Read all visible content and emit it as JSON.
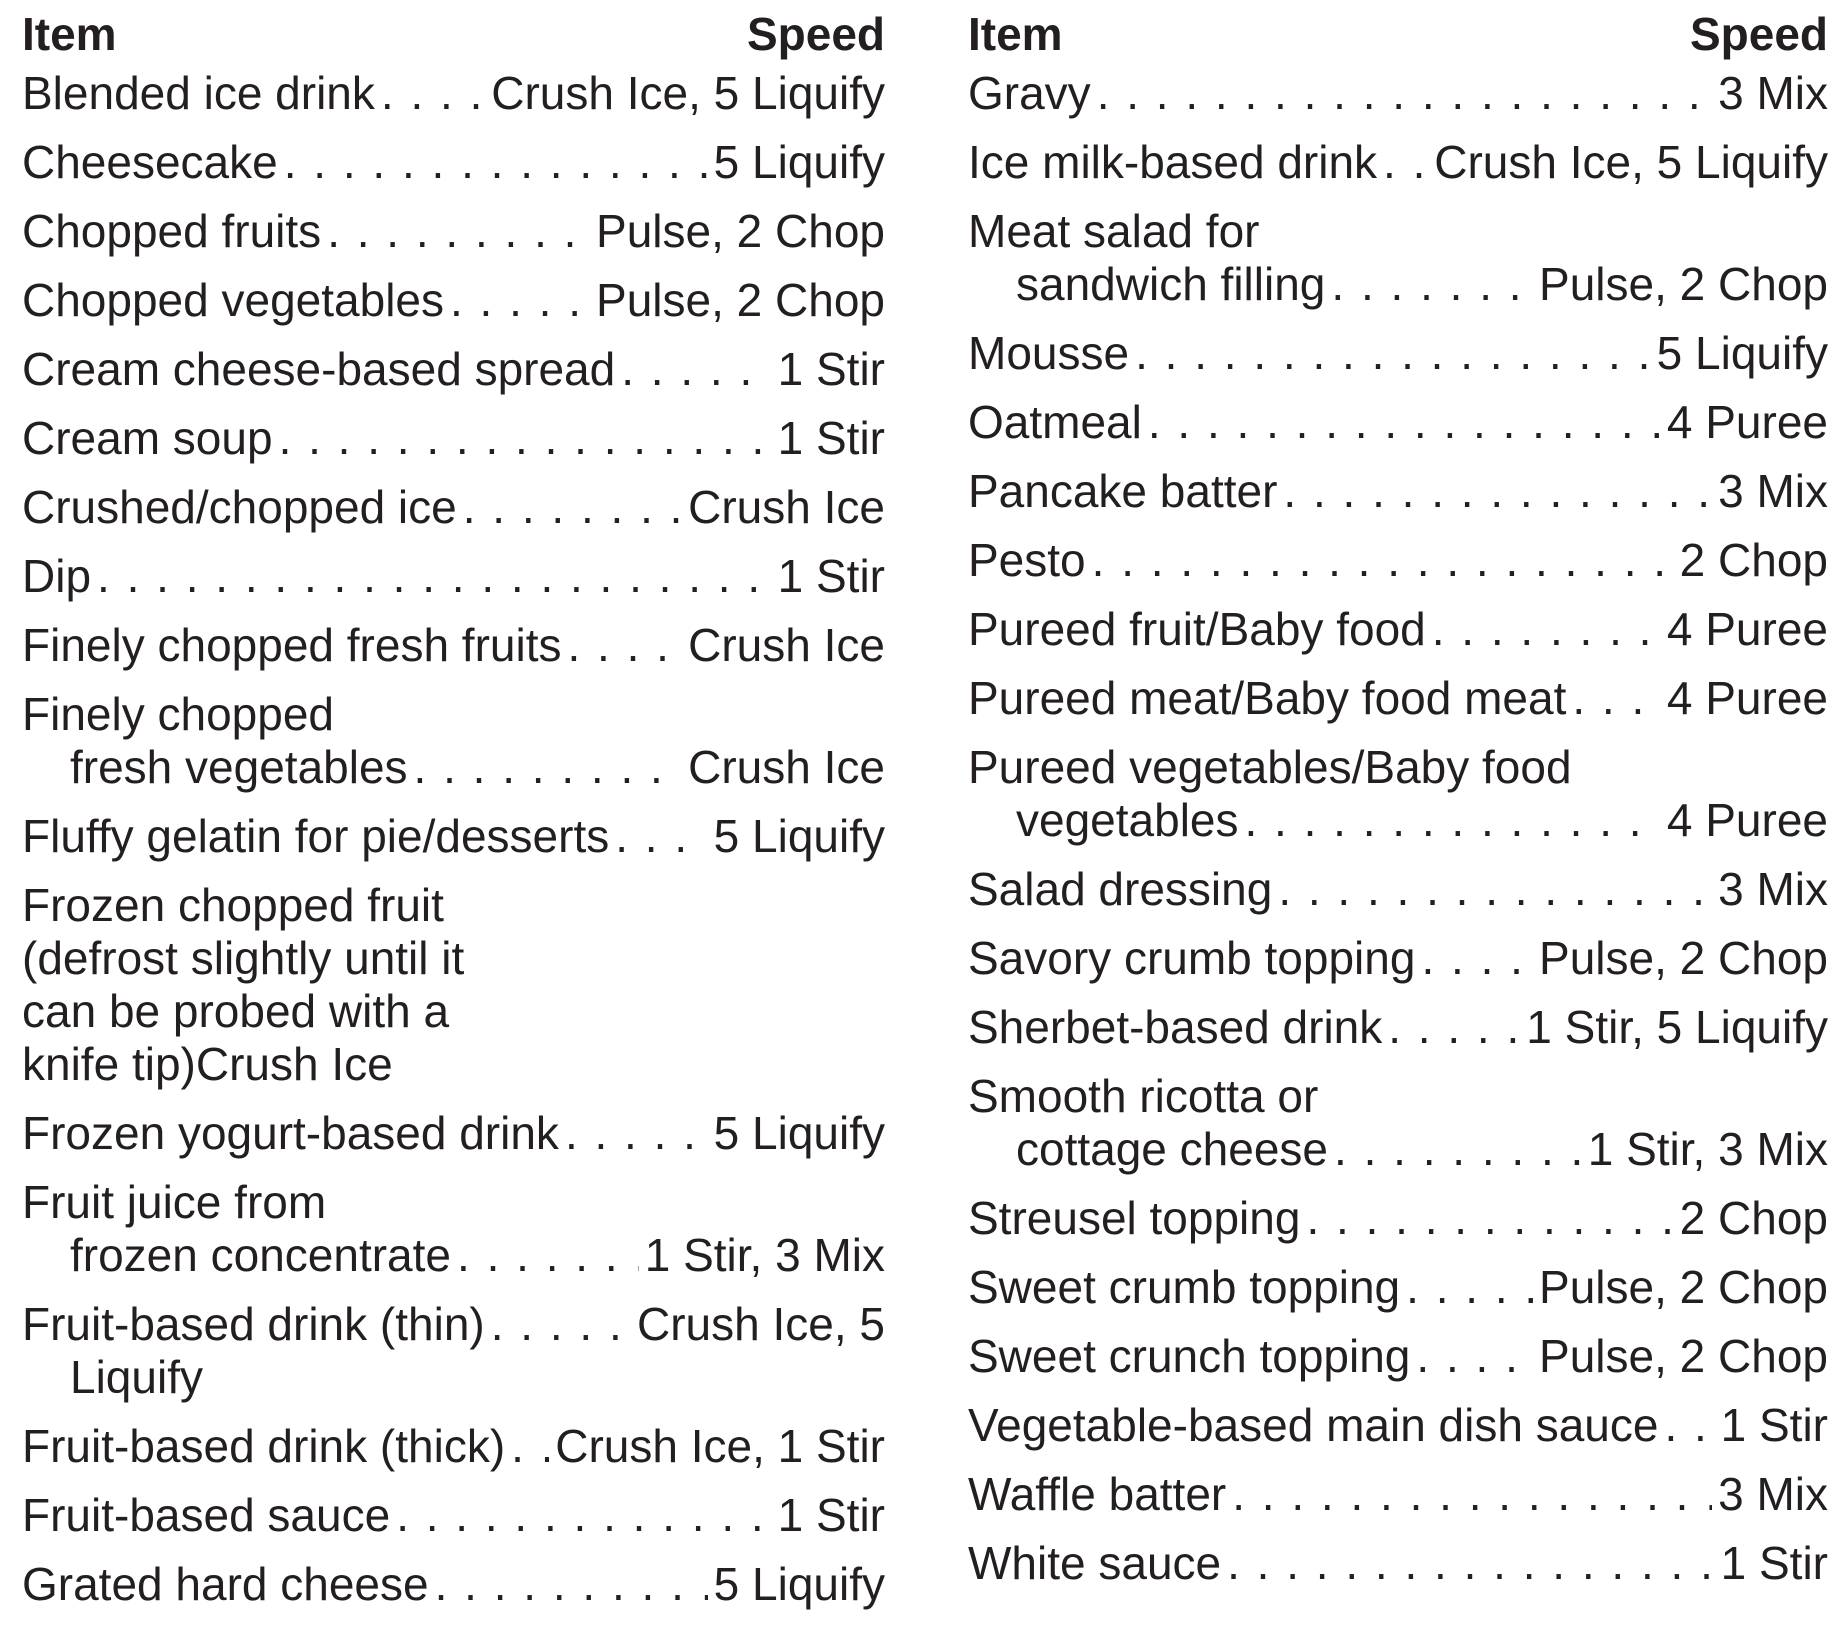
{
  "header": {
    "item": "Item",
    "speed": "Speed"
  },
  "left": [
    {
      "name": "Blended ice drink",
      "speed": "Crush Ice, 5 Liquify"
    },
    {
      "name": "Cheesecake",
      "speed": "5 Liquify"
    },
    {
      "name": "Chopped fruits",
      "speed": "Pulse, 2 Chop"
    },
    {
      "name": "Chopped vegetables",
      "speed": "Pulse, 2 Chop"
    },
    {
      "name": "Cream cheese-based spread",
      "speed": "1 Stir"
    },
    {
      "name": "Cream soup",
      "speed": "1 Stir"
    },
    {
      "name": "Crushed/chopped ice",
      "speed": "Crush Ice"
    },
    {
      "name": "Dip",
      "speed": "1 Stir"
    },
    {
      "name": "Finely chopped fresh fruits",
      "speed": "Crush Ice"
    },
    {
      "name": "Finely chopped",
      "cont": "fresh vegetables",
      "speed": "Crush Ice"
    },
    {
      "name": "Fluffy gelatin for pie/desserts",
      "speed": "5 Liquify"
    },
    {
      "name": "Frozen chopped fruit",
      "lines": [
        "(defrost slightly until it",
        "can be probed with a",
        "knife tip)Crush Ice"
      ]
    },
    {
      "name": "Frozen yogurt-based drink",
      "speed": "5 Liquify"
    },
    {
      "name": "Fruit juice from",
      "cont": "frozen concentrate",
      "speed": "1 Stir, 3 Mix"
    },
    {
      "name": "Fruit-based drink (thin)",
      "speed": "Crush Ice, 5",
      "wrap": "Liquify"
    },
    {
      "name": "Fruit-based drink (thick)",
      "speed": "Crush Ice, 1 Stir"
    },
    {
      "name": "Fruit-based sauce",
      "speed": "1 Stir"
    },
    {
      "name": "Grated hard cheese",
      "speed": "5 Liquify"
    }
  ],
  "right": [
    {
      "name": "Gravy",
      "speed": "3 Mix"
    },
    {
      "name": "Ice milk-based drink",
      "speed": "Crush Ice, 5 Liquify"
    },
    {
      "name": "Meat salad for",
      "cont": "sandwich filling",
      "speed": "Pulse, 2 Chop"
    },
    {
      "name": "Mousse",
      "speed": "5 Liquify"
    },
    {
      "name": "Oatmeal",
      "speed": "4 Puree"
    },
    {
      "name": "Pancake batter",
      "speed": "3 Mix"
    },
    {
      "name": "Pesto",
      "speed": "2 Chop"
    },
    {
      "name": "Pureed fruit/Baby food",
      "speed": "4 Puree"
    },
    {
      "name": "Pureed meat/Baby food meat",
      "speed": "4 Puree"
    },
    {
      "name": "Pureed vegetables/Baby food",
      "cont": "vegetables",
      "speed": "4 Puree"
    },
    {
      "name": "Salad dressing",
      "speed": "3 Mix"
    },
    {
      "name": "Savory crumb topping",
      "speed": "Pulse, 2 Chop"
    },
    {
      "name": "Sherbet-based drink",
      "speed": "1 Stir, 5 Liquify"
    },
    {
      "name": "Smooth ricotta or",
      "cont": "cottage cheese",
      "speed": "1 Stir, 3 Mix"
    },
    {
      "name": "Streusel topping",
      "speed": "2 Chop"
    },
    {
      "name": "Sweet crumb topping",
      "speed": "Pulse, 2 Chop"
    },
    {
      "name": "Sweet crunch topping",
      "speed": "Pulse, 2 Chop"
    },
    {
      "name": "Vegetable-based main dish sauce",
      "speed": "1 Stir"
    },
    {
      "name": "Waffle batter",
      "speed": "3 Mix"
    },
    {
      "name": "White sauce",
      "speed": "1 Stir"
    }
  ]
}
